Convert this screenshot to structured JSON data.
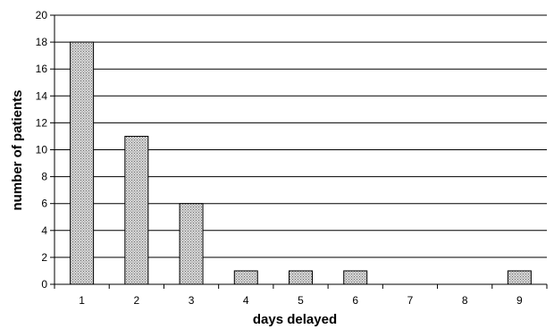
{
  "chart_data": {
    "type": "bar",
    "title": "",
    "xlabel": "days delayed",
    "ylabel": "number of patients",
    "categories": [
      "1",
      "2",
      "3",
      "4",
      "5",
      "6",
      "7",
      "8",
      "9"
    ],
    "values": [
      18,
      11,
      6,
      1,
      1,
      1,
      0,
      0,
      1
    ],
    "ylim": [
      0,
      20
    ],
    "yticks": [
      "0",
      "2",
      "4",
      "6",
      "8",
      "10",
      "12",
      "14",
      "16",
      "18",
      "20"
    ],
    "grid": true,
    "legend": "none",
    "bar_fill": "#a9a9a9"
  }
}
